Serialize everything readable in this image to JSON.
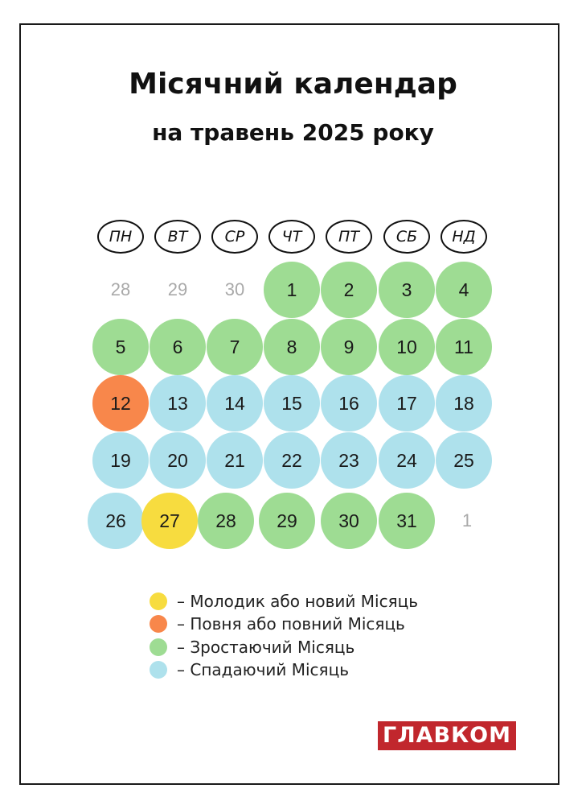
{
  "title": "Місячний календар",
  "subtitle": "на травень 2025 року",
  "colors": {
    "new_moon": "#f7dc3f",
    "full_moon": "#f8874b",
    "waxing": "#9edc93",
    "waning": "#aee1ec",
    "muted_text": "#a9a9a9"
  },
  "weekdays": [
    "ПН",
    "ВТ",
    "СР",
    "ЧТ",
    "ПТ",
    "СБ",
    "НД"
  ],
  "weeks": [
    [
      {
        "d": "28",
        "p": "other"
      },
      {
        "d": "29",
        "p": "other"
      },
      {
        "d": "30",
        "p": "other"
      },
      {
        "d": "1",
        "p": "waxing"
      },
      {
        "d": "2",
        "p": "waxing"
      },
      {
        "d": "3",
        "p": "waxing"
      },
      {
        "d": "4",
        "p": "waxing"
      }
    ],
    [
      {
        "d": "5",
        "p": "waxing"
      },
      {
        "d": "6",
        "p": "waxing"
      },
      {
        "d": "7",
        "p": "waxing"
      },
      {
        "d": "8",
        "p": "waxing"
      },
      {
        "d": "9",
        "p": "waxing"
      },
      {
        "d": "10",
        "p": "waxing"
      },
      {
        "d": "11",
        "p": "waxing"
      }
    ],
    [
      {
        "d": "12",
        "p": "full_moon"
      },
      {
        "d": "13",
        "p": "waning"
      },
      {
        "d": "14",
        "p": "waning"
      },
      {
        "d": "15",
        "p": "waning"
      },
      {
        "d": "16",
        "p": "waning"
      },
      {
        "d": "17",
        "p": "waning"
      },
      {
        "d": "18",
        "p": "waning"
      }
    ],
    [
      {
        "d": "19",
        "p": "waning"
      },
      {
        "d": "20",
        "p": "waning"
      },
      {
        "d": "21",
        "p": "waning"
      },
      {
        "d": "22",
        "p": "waning"
      },
      {
        "d": "23",
        "p": "waning"
      },
      {
        "d": "24",
        "p": "waning"
      },
      {
        "d": "25",
        "p": "waning"
      }
    ],
    [
      {
        "d": "26",
        "p": "waning"
      },
      {
        "d": "27",
        "p": "new_moon"
      },
      {
        "d": "28",
        "p": "waxing"
      },
      {
        "d": "29",
        "p": "waxing"
      },
      {
        "d": "30",
        "p": "waxing"
      },
      {
        "d": "31",
        "p": "waxing"
      },
      {
        "d": "1",
        "p": "other"
      }
    ]
  ],
  "legend": [
    {
      "phase": "new_moon",
      "label": "–  Молодик або новий Місяць"
    },
    {
      "phase": "full_moon",
      "label": "–  Повня або повний Місяць"
    },
    {
      "phase": "waxing",
      "label": "–  Зростаючий Місяць"
    },
    {
      "phase": "waning",
      "label": "–  Спадаючий Місяць"
    }
  ],
  "logo": "ГЛАВКОМ"
}
